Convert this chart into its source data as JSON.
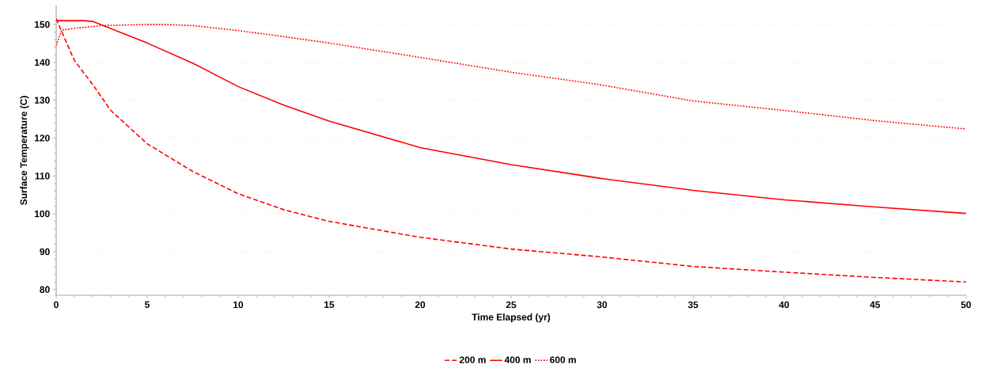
{
  "chart_data": {
    "type": "line",
    "xlabel": "Time Elapsed (yr)",
    "ylabel": "Surface Temperature (C)",
    "xlim": [
      0,
      50
    ],
    "ylim": [
      78.5,
      155
    ],
    "xticks": [
      0,
      5,
      10,
      15,
      20,
      25,
      30,
      35,
      40,
      45,
      50
    ],
    "yticks": [
      80,
      90,
      100,
      110,
      120,
      130,
      140,
      150
    ],
    "grid": "y",
    "legend": "bottom",
    "marker": "none",
    "series": [
      {
        "name": "200 m",
        "color": "#ff0000",
        "line_style": "dashed",
        "x": [
          0,
          1,
          2,
          3,
          5,
          7.5,
          10,
          12.5,
          15,
          20,
          25,
          30,
          35,
          40,
          45,
          50
        ],
        "values": [
          151.5,
          140.5,
          134.2,
          127.3,
          118.5,
          111.2,
          105.3,
          101.1,
          98,
          93.8,
          90.7,
          88.6,
          86.1,
          84.6,
          83.2,
          82
        ]
      },
      {
        "name": "400 m",
        "color": "#ff0000",
        "line_style": "solid",
        "x": [
          0,
          1.5,
          2,
          2.5,
          5,
          7.5,
          10,
          12.5,
          15,
          20,
          25,
          30,
          35,
          40,
          45,
          50
        ],
        "values": [
          151,
          151,
          150.8,
          149.9,
          145.1,
          139.8,
          133.6,
          128.7,
          124.5,
          117.5,
          113,
          109.3,
          106.2,
          103.7,
          101.8,
          100.1
        ]
      },
      {
        "name": "600 m",
        "color": "#ff0000",
        "line_style": "dotted",
        "x": [
          0,
          0.3,
          1,
          2.5,
          5,
          6,
          7.5,
          10,
          12.5,
          15,
          20,
          25,
          30,
          35,
          40,
          45,
          50
        ],
        "values": [
          144.5,
          148.5,
          149,
          149.7,
          150,
          150,
          149.7,
          148.4,
          146.8,
          145.1,
          141.3,
          137.4,
          134,
          129.8,
          127.3,
          124.6,
          122.4
        ]
      }
    ]
  }
}
